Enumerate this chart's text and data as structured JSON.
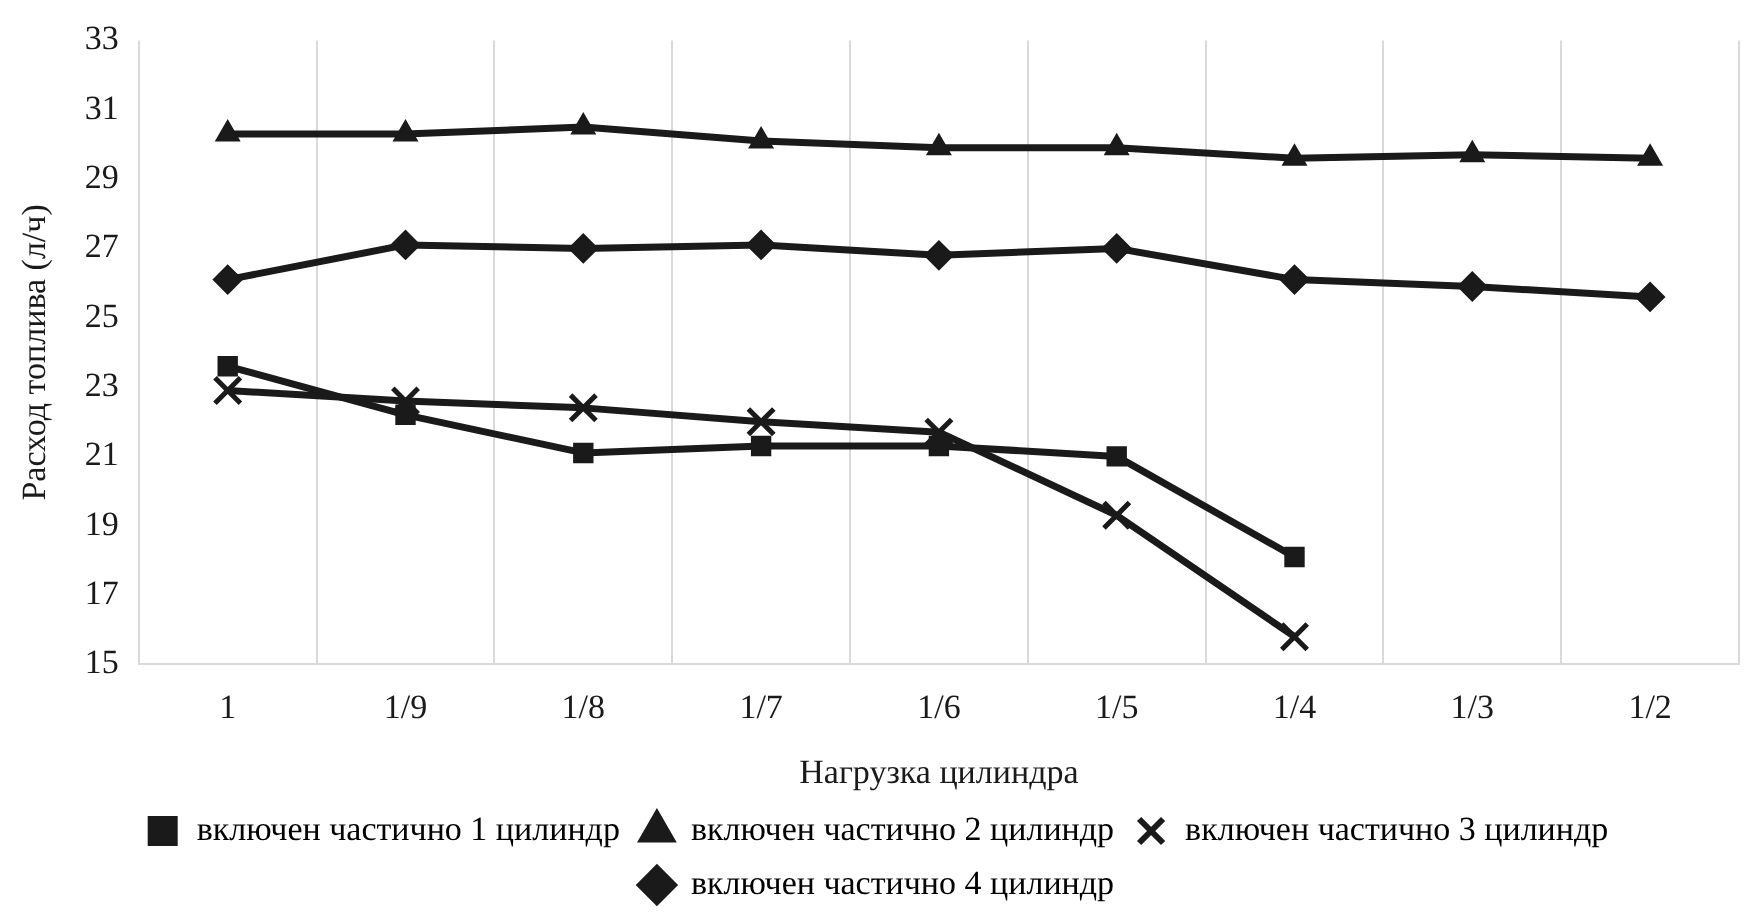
{
  "chart_data": {
    "type": "line",
    "xlabel": "Нагрузка цилиндра",
    "ylabel": "Расход топлива (л/ч)",
    "categories": [
      "1",
      "1/9",
      "1/8",
      "1/7",
      "1/6",
      "1/5",
      "1/4",
      "1/3",
      "1/2"
    ],
    "ylim": [
      15,
      33
    ],
    "yticks": [
      15,
      17,
      19,
      21,
      23,
      25,
      27,
      29,
      31,
      33
    ],
    "grid": "x",
    "legend": "bottom",
    "line_style": "solid",
    "series": [
      {
        "name": "включен частично 1 цилиндр",
        "color": "#1a1a1a",
        "marker": "square",
        "values": [
          23.6,
          22.2,
          21.1,
          21.3,
          21.3,
          21.0,
          18.1,
          null,
          null
        ]
      },
      {
        "name": "включен частично 2 цилиндр",
        "color": "#1a1a1a",
        "marker": "triangle",
        "values": [
          30.3,
          30.3,
          30.5,
          30.1,
          29.9,
          29.9,
          29.6,
          29.7,
          29.6
        ]
      },
      {
        "name": "включен частично 3 цилиндр",
        "color": "#1a1a1a",
        "marker": "cross",
        "values": [
          22.9,
          22.6,
          22.4,
          22.0,
          21.7,
          19.3,
          15.8,
          null,
          null
        ]
      },
      {
        "name": "включен частично 4 цилиндр",
        "color": "#1a1a1a",
        "marker": "diamond",
        "values": [
          26.1,
          27.1,
          27.0,
          27.1,
          26.8,
          27.0,
          26.1,
          25.9,
          25.6
        ]
      }
    ]
  }
}
